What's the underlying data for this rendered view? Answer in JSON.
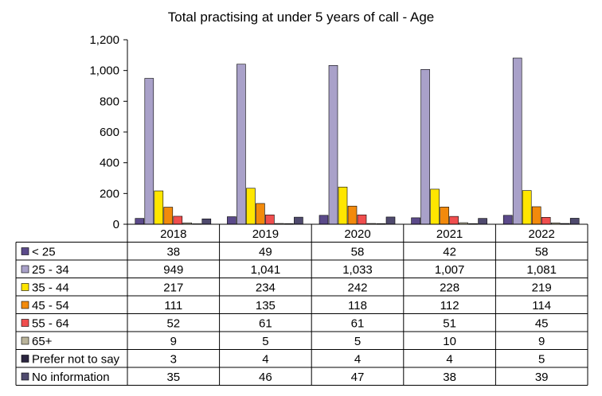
{
  "chart_data": {
    "type": "bar",
    "title": "Total practising at under 5 years of call - Age",
    "xlabel": "",
    "ylabel": "",
    "ylim": [
      0,
      1200
    ],
    "yticks": [
      0,
      200,
      400,
      600,
      800,
      1000,
      1200
    ],
    "ytick_labels": [
      "0",
      "200",
      "400",
      "600",
      "800",
      "1,000",
      "1,200"
    ],
    "grid": false,
    "legend": "data-table",
    "categories": [
      "2018",
      "2019",
      "2020",
      "2021",
      "2022"
    ],
    "series": [
      {
        "name": "< 25",
        "color": "#5b4a8a",
        "values": [
          38,
          49,
          58,
          42,
          58
        ],
        "labels": [
          "38",
          "49",
          "58",
          "42",
          "58"
        ]
      },
      {
        "name": "25 - 34",
        "color": "#a9a1c9",
        "values": [
          949,
          1041,
          1033,
          1007,
          1081
        ],
        "labels": [
          "949",
          "1,041",
          "1,033",
          "1,007",
          "1,081"
        ]
      },
      {
        "name": "35 - 44",
        "color": "#ffe600",
        "values": [
          217,
          234,
          242,
          228,
          219
        ],
        "labels": [
          "217",
          "234",
          "242",
          "228",
          "219"
        ]
      },
      {
        "name": "45 - 54",
        "color": "#f28a0c",
        "values": [
          111,
          135,
          118,
          112,
          114
        ],
        "labels": [
          "111",
          "135",
          "118",
          "112",
          "114"
        ]
      },
      {
        "name": "55 - 64",
        "color": "#f04e4e",
        "values": [
          52,
          61,
          61,
          51,
          45
        ],
        "labels": [
          "52",
          "61",
          "61",
          "51",
          "45"
        ]
      },
      {
        "name": "65+",
        "color": "#b9b39a",
        "values": [
          9,
          5,
          5,
          10,
          9
        ],
        "labels": [
          "9",
          "5",
          "5",
          "10",
          "9"
        ]
      },
      {
        "name": "Prefer not to say",
        "color": "#2b2540",
        "values": [
          3,
          4,
          4,
          4,
          5
        ],
        "labels": [
          "3",
          "4",
          "4",
          "4",
          "5"
        ]
      },
      {
        "name": "No information",
        "color": "#4f4a6e",
        "values": [
          35,
          46,
          47,
          38,
          39
        ],
        "labels": [
          "35",
          "46",
          "47",
          "38",
          "39"
        ]
      }
    ]
  }
}
